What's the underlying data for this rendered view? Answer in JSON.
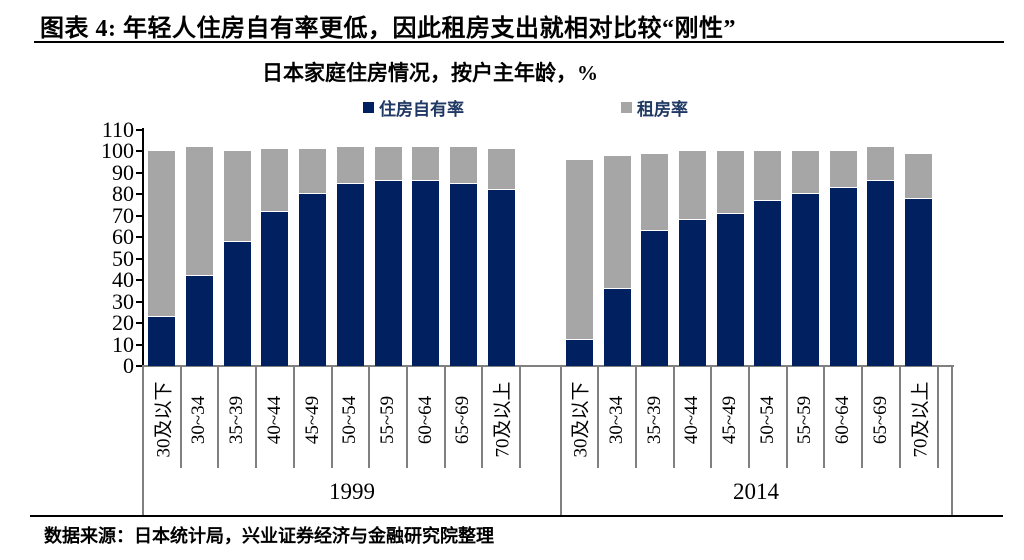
{
  "report": {
    "title": "图表 4: 年轻人住房自有率更低，因此租房支出就相对比较“刚性”",
    "source_note": "数据来源：日本统计局，兴业证券经济与金融研究院整理"
  },
  "chart_data": {
    "type": "bar",
    "stacked": true,
    "title": "日本家庭住房情况，按户主年龄，%",
    "legend_position": "top",
    "grid": false,
    "ylim": [
      0,
      110
    ],
    "yticks": [
      0,
      10,
      20,
      30,
      40,
      50,
      60,
      70,
      80,
      90,
      100,
      110
    ],
    "legend": [
      {
        "label": "住房自有率",
        "color": "#002060"
      },
      {
        "label": "租房率",
        "color": "#a6a6a6"
      }
    ],
    "categories": [
      "30及以下",
      "30~34",
      "35~39",
      "40~44",
      "45~49",
      "50~54",
      "55~59",
      "60~64",
      "65~69",
      "70及以上"
    ],
    "groups": [
      {
        "label": "1999",
        "series": [
          {
            "name": "住房自有率",
            "color": "#002060",
            "values": [
              23,
              42,
              58,
              72,
              80,
              85,
              86,
              86,
              85,
              82
            ]
          },
          {
            "name": "租房率",
            "color": "#a6a6a6",
            "values": [
              77,
              60,
              42,
              29,
              21,
              17,
              16,
              16,
              17,
              19
            ]
          }
        ]
      },
      {
        "label": "2014",
        "series": [
          {
            "name": "住房自有率",
            "color": "#002060",
            "values": [
              12,
              36,
              63,
              68,
              71,
              77,
              80,
              83,
              86,
              78
            ]
          },
          {
            "name": "租房率",
            "color": "#a6a6a6",
            "values": [
              84,
              62,
              36,
              32,
              29,
              23,
              20,
              17,
              16,
              21
            ]
          }
        ]
      }
    ]
  }
}
